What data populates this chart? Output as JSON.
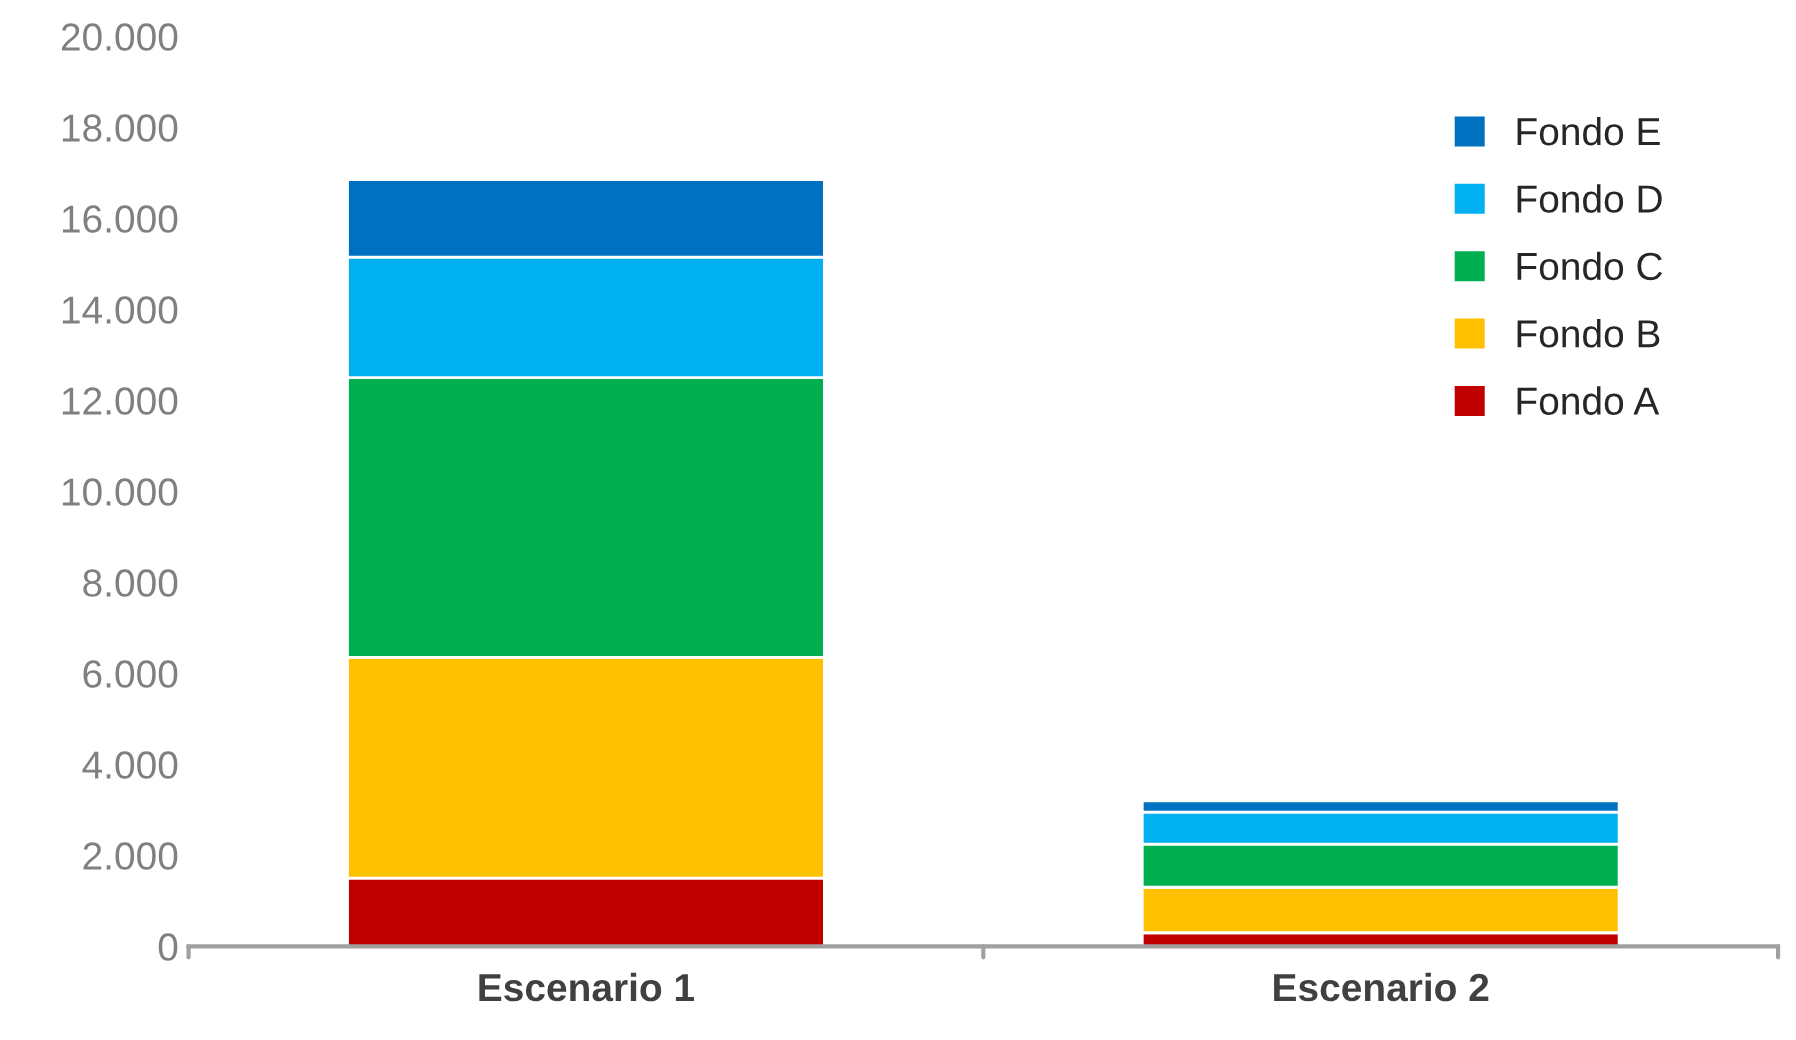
{
  "chart_data": {
    "type": "bar",
    "stacked": true,
    "categories": [
      "Escenario 1",
      "Escenario 2"
    ],
    "series": [
      {
        "name": "Fondo A",
        "color": "#c00000",
        "values": [
          1500,
          300
        ]
      },
      {
        "name": "Fondo B",
        "color": "#ffc000",
        "values": [
          4850,
          1000
        ]
      },
      {
        "name": "Fondo C",
        "color": "#00b050",
        "values": [
          6150,
          950
        ]
      },
      {
        "name": "Fondo D",
        "color": "#00b0f0",
        "values": [
          2650,
          700
        ]
      },
      {
        "name": "Fondo E",
        "color": "#0070c0",
        "values": [
          1700,
          250
        ]
      }
    ],
    "ylim": [
      0,
      20000
    ],
    "yticks": [
      {
        "value": 0,
        "label": "0"
      },
      {
        "value": 2000,
        "label": "2.000"
      },
      {
        "value": 4000,
        "label": "4.000"
      },
      {
        "value": 6000,
        "label": "6.000"
      },
      {
        "value": 8000,
        "label": "8.000"
      },
      {
        "value": 10000,
        "label": "10.000"
      },
      {
        "value": 12000,
        "label": "12.000"
      },
      {
        "value": 14000,
        "label": "14.000"
      },
      {
        "value": 16000,
        "label": "16.000"
      },
      {
        "value": 18000,
        "label": "18.000"
      },
      {
        "value": 20000,
        "label": "20.000"
      }
    ],
    "grid": false,
    "legend": "top right"
  }
}
